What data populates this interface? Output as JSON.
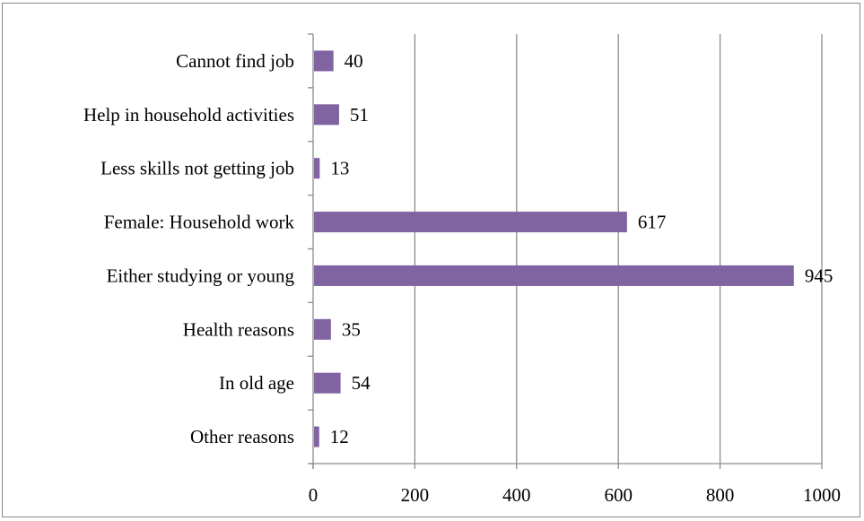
{
  "chart_data": {
    "type": "bar",
    "orientation": "horizontal",
    "categories": [
      "Cannot find job",
      "Help in household activities",
      "Less skills not getting job",
      "Female: Household work",
      "Either studying or young",
      "Health reasons",
      "In old age",
      "Other reasons"
    ],
    "values": [
      40,
      51,
      13,
      617,
      945,
      35,
      54,
      12
    ],
    "xlim": [
      0,
      1000
    ],
    "x_ticks": [
      0,
      200,
      400,
      600,
      800,
      1000
    ],
    "x_tick_labels": [
      "0",
      "200",
      "400",
      "600",
      "800",
      "1000"
    ],
    "data_labels": [
      "40",
      "51",
      "13",
      "617",
      "945",
      "35",
      "54",
      "12"
    ],
    "grid": "vertical",
    "legend": "none",
    "bar_color": "#8064a2",
    "gridline_color": "#8c8c8c",
    "axis_color": "#8c8c8c"
  }
}
